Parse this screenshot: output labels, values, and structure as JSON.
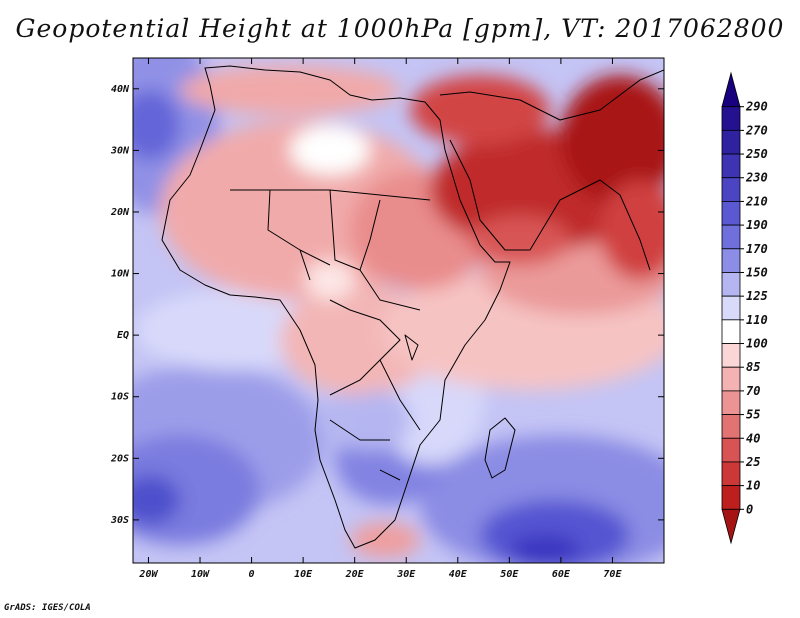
{
  "title": "Geopotential Height at 1000hPa [gpm], VT: 2017062800",
  "footer": "GrADS: IGES/COLA",
  "map": {
    "lat_labels": [
      "40N",
      "30N",
      "20N",
      "10N",
      "EQ",
      "10S",
      "20S",
      "30S"
    ],
    "lon_labels": [
      "20W",
      "10W",
      "0",
      "10E",
      "20E",
      "30E",
      "40E",
      "50E",
      "60E",
      "70E"
    ],
    "lon_range": [
      -23,
      80
    ],
    "lat_range": [
      -37,
      45
    ]
  },
  "colorbar": {
    "levels": [
      "290",
      "270",
      "250",
      "230",
      "210",
      "190",
      "170",
      "150",
      "125",
      "110",
      "100",
      "85",
      "70",
      "55",
      "40",
      "25",
      "10",
      "0"
    ],
    "colors": [
      "#18007e",
      "#23118f",
      "#2f22a0",
      "#3d33b3",
      "#4b45c4",
      "#5b59d2",
      "#6f70dc",
      "#8c8de6",
      "#b5b6f1",
      "#d9dafa",
      "#ffffff",
      "#fbd6d6",
      "#f4b3b3",
      "#ec9393",
      "#e27373",
      "#d85454",
      "#cc3737",
      "#bd1f1f",
      "#a61313"
    ]
  }
}
